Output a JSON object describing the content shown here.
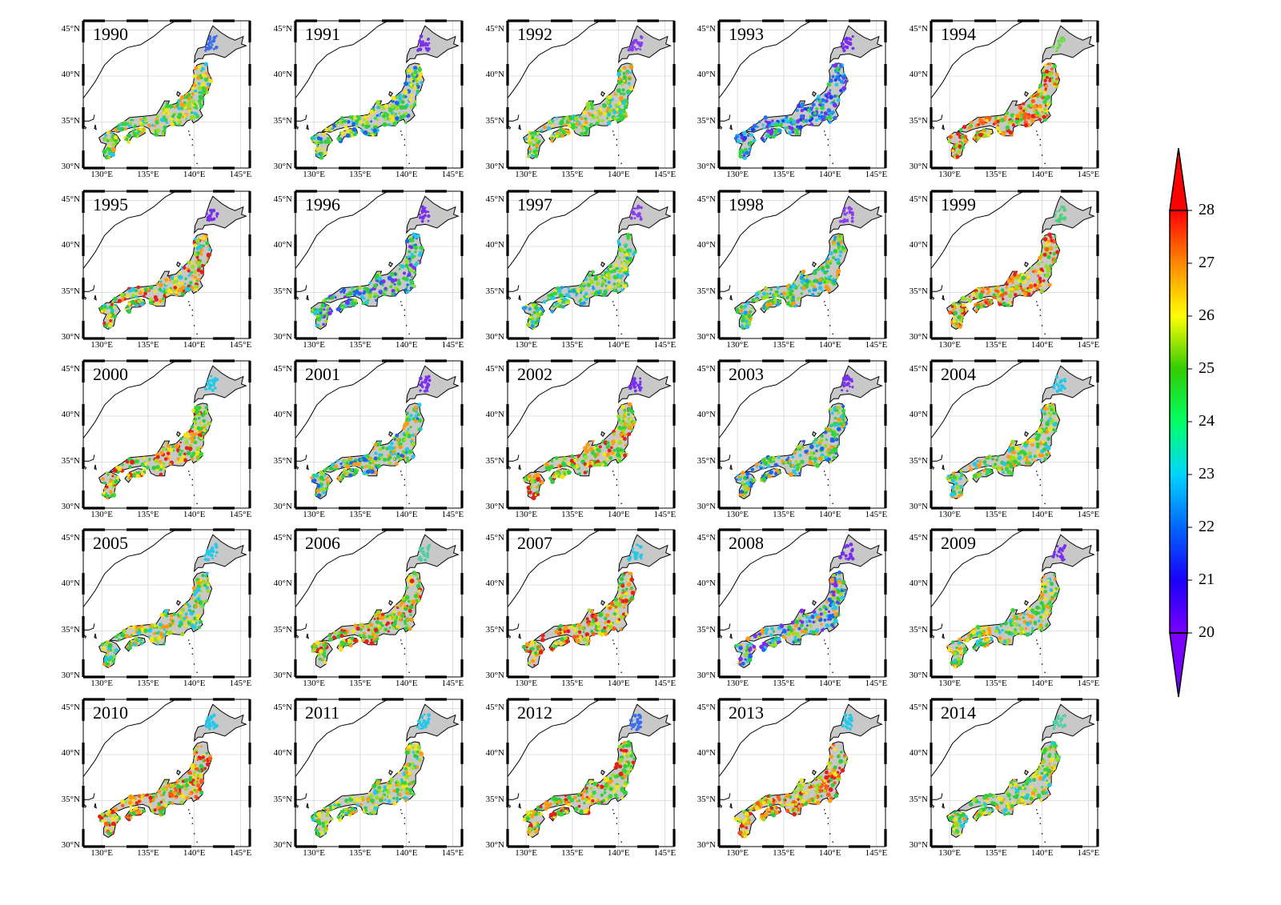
{
  "figure": {
    "panels": [
      {
        "year": "1990",
        "palette": [
          "#2ecc40",
          "#9bde20",
          "#f2e31c",
          "#ff9a12",
          "#36d63a",
          "#25c8e8"
        ],
        "north": "#3a6cf0"
      },
      {
        "year": "1991",
        "palette": [
          "#2ecc40",
          "#27c0e8",
          "#1a64f0",
          "#9bde20",
          "#36d63a",
          "#f2e31c"
        ],
        "north": "#7a2ef0"
      },
      {
        "year": "1992",
        "palette": [
          "#2ecc40",
          "#9bde20",
          "#36d63a",
          "#f2e31c",
          "#25c8e8",
          "#ff9a12"
        ],
        "north": "#8a3cf0"
      },
      {
        "year": "1993",
        "palette": [
          "#1a3cf0",
          "#2a6cf0",
          "#25c8e8",
          "#7a2ef0",
          "#36d63a",
          "#1a9cf0"
        ],
        "north": "#7a2ef0"
      },
      {
        "year": "1994",
        "palette": [
          "#ff5a14",
          "#ff9a12",
          "#e81e1e",
          "#f2e31c",
          "#9bde20",
          "#36d63a"
        ],
        "north": "#6ed94a"
      },
      {
        "year": "1995",
        "palette": [
          "#2ecc40",
          "#9bde20",
          "#f2e31c",
          "#ff9a12",
          "#25c8e8",
          "#e81e1e"
        ],
        "north": "#7a2ef0"
      },
      {
        "year": "1996",
        "palette": [
          "#2ecc40",
          "#1a64f0",
          "#25c8e8",
          "#9bde20",
          "#7a2ef0",
          "#36d63a"
        ],
        "north": "#7a2ef0"
      },
      {
        "year": "1997",
        "palette": [
          "#2ecc40",
          "#25c8e8",
          "#9bde20",
          "#36d63a",
          "#1a9cf0",
          "#f2e31c"
        ],
        "north": "#8a3cf0"
      },
      {
        "year": "1998",
        "palette": [
          "#2ecc40",
          "#25c8e8",
          "#9bde20",
          "#36d63a",
          "#ff9a12",
          "#1a9cf0"
        ],
        "north": "#8a3cf0"
      },
      {
        "year": "1999",
        "palette": [
          "#9bde20",
          "#f2e31c",
          "#ff9a12",
          "#ff5a14",
          "#2ecc40",
          "#e81e1e"
        ],
        "north": "#4ed07a"
      },
      {
        "year": "2000",
        "palette": [
          "#2ecc40",
          "#9bde20",
          "#f2e31c",
          "#ff9a12",
          "#36d63a",
          "#e81e1e"
        ],
        "north": "#25c8e8"
      },
      {
        "year": "2001",
        "palette": [
          "#2ecc40",
          "#25c8e8",
          "#1a64f0",
          "#9bde20",
          "#ff9a12",
          "#36d63a"
        ],
        "north": "#7a2ef0"
      },
      {
        "year": "2002",
        "palette": [
          "#2ecc40",
          "#9bde20",
          "#f2e31c",
          "#ff9a12",
          "#e81e1e",
          "#36d63a"
        ],
        "north": "#7a2ef0"
      },
      {
        "year": "2003",
        "palette": [
          "#2ecc40",
          "#1a64f0",
          "#25c8e8",
          "#9bde20",
          "#ff9a12",
          "#36d63a"
        ],
        "north": "#7a2ef0"
      },
      {
        "year": "2004",
        "palette": [
          "#2ecc40",
          "#9bde20",
          "#25c8e8",
          "#f2e31c",
          "#36d63a",
          "#ff9a12"
        ],
        "north": "#25c8e8"
      },
      {
        "year": "2005",
        "palette": [
          "#2ecc40",
          "#9bde20",
          "#f2e31c",
          "#ff9a12",
          "#25c8e8",
          "#36d63a"
        ],
        "north": "#25c8e8"
      },
      {
        "year": "2006",
        "palette": [
          "#2ecc40",
          "#9bde20",
          "#f2e31c",
          "#ff9a12",
          "#e81e1e",
          "#36d63a"
        ],
        "north": "#4ed0a0"
      },
      {
        "year": "2007",
        "palette": [
          "#9bde20",
          "#f2e31c",
          "#ff9a12",
          "#e81e1e",
          "#2ecc40",
          "#ff5a14"
        ],
        "north": "#25c8e8"
      },
      {
        "year": "2008",
        "palette": [
          "#2ecc40",
          "#1a64f0",
          "#25c8e8",
          "#9bde20",
          "#ff9a12",
          "#7a2ef0"
        ],
        "north": "#7a2ef0"
      },
      {
        "year": "2009",
        "palette": [
          "#2ecc40",
          "#9bde20",
          "#25c8e8",
          "#36d63a",
          "#f2e31c",
          "#ff9a12"
        ],
        "north": "#7a2ef0"
      },
      {
        "year": "2010",
        "palette": [
          "#e81e1e",
          "#ff5a14",
          "#ff9a12",
          "#f2e31c",
          "#9bde20",
          "#2ecc40"
        ],
        "north": "#25c8e8"
      },
      {
        "year": "2011",
        "palette": [
          "#2ecc40",
          "#9bde20",
          "#f2e31c",
          "#ff9a12",
          "#36d63a",
          "#25c8e8"
        ],
        "north": "#25c8e8"
      },
      {
        "year": "2012",
        "palette": [
          "#9bde20",
          "#f2e31c",
          "#ff9a12",
          "#2ecc40",
          "#e81e1e",
          "#36d63a"
        ],
        "north": "#3a6cf0"
      },
      {
        "year": "2013",
        "palette": [
          "#9bde20",
          "#f2e31c",
          "#ff9a12",
          "#e81e1e",
          "#2ecc40",
          "#ff5a14"
        ],
        "north": "#25c8e8"
      },
      {
        "year": "2014",
        "palette": [
          "#2ecc40",
          "#9bde20",
          "#25c8e8",
          "#f2e31c",
          "#36d63a",
          "#ff9a12"
        ],
        "north": "#4ed0a0"
      }
    ],
    "lat_ticks": [
      "45°N",
      "40°N",
      "35°N",
      "30°N"
    ],
    "lon_ticks": [
      "130°E",
      "135°E",
      "140°E",
      "145°E"
    ],
    "colorbar": {
      "ticks": [
        "28",
        "27",
        "26",
        "25",
        "24",
        "23",
        "22",
        "21",
        "20"
      ],
      "min": 20,
      "max": 28,
      "extend": "both",
      "colors": [
        "#7a00ff",
        "#1a00ff",
        "#0066ff",
        "#00d5ff",
        "#00ff66",
        "#33cc00",
        "#ffff00",
        "#ff8800",
        "#ff0000"
      ]
    }
  }
}
